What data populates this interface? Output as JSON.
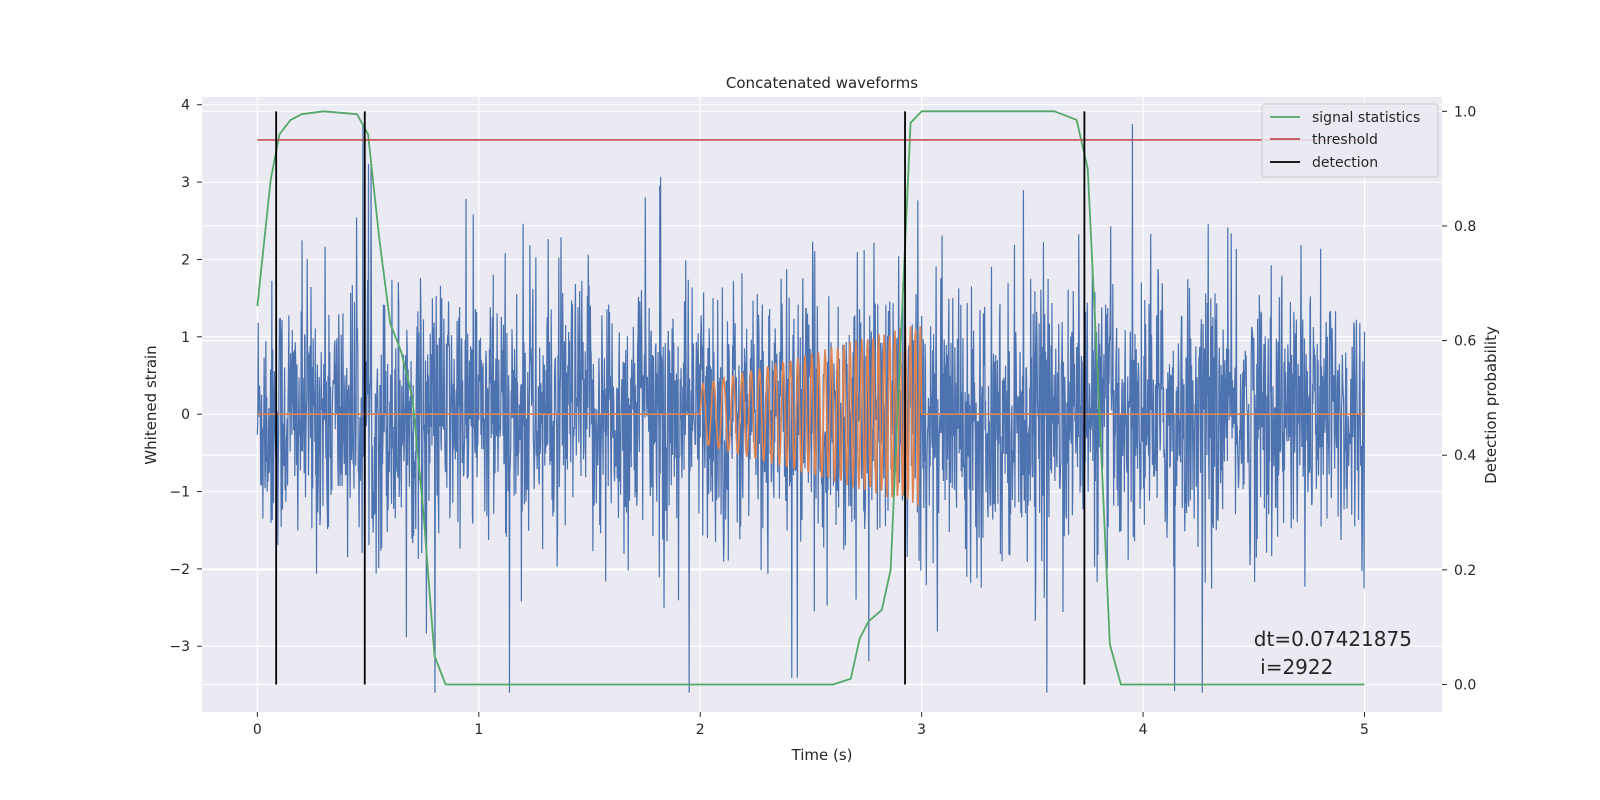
{
  "chart_data": {
    "type": "line",
    "title": "Concatenated waveforms",
    "xlabel": "Time (s)",
    "ylabel": "Whitened strain",
    "y2label": "Detection probability",
    "xlim": [
      -0.25,
      5.35
    ],
    "ylim": [
      -3.85,
      4.1
    ],
    "y2lim": [
      -0.048,
      1.025
    ],
    "xticks": [
      0,
      1,
      2,
      3,
      4,
      5
    ],
    "xtick_labels": [
      "0",
      "1",
      "2",
      "3",
      "4",
      "5"
    ],
    "yticks": [
      -3,
      -2,
      -1,
      0,
      1,
      2,
      3,
      4
    ],
    "ytick_labels": [
      "−3",
      "−2",
      "−1",
      "0",
      "1",
      "2",
      "3",
      "4"
    ],
    "y2ticks": [
      0.0,
      0.2,
      0.4,
      0.6,
      0.8,
      1.0
    ],
    "y2tick_labels": [
      "0.0",
      "0.2",
      "0.4",
      "0.6",
      "0.8",
      "1.0"
    ],
    "grid": true,
    "legend_position": "top-right",
    "series": [
      {
        "key": "strain",
        "axis": "left",
        "color": "#4c72b0",
        "description": "whitened noisy strain, 0–5 s, amplitude ~±3.5",
        "x_range": [
          0,
          5
        ],
        "envelope": [
          -3.6,
          3.75
        ]
      },
      {
        "key": "template",
        "axis": "left",
        "color": "#dd8452",
        "description": "chirp waveform",
        "x_range": [
          2.0,
          3.0
        ],
        "amplitude_start": 0.38,
        "amplitude_end": 1.2,
        "freq_start_hz": 20,
        "freq_end_hz": 45
      },
      {
        "name": "signal statistics",
        "axis": "right",
        "color": "#55a868",
        "x": [
          0.0,
          0.03,
          0.06,
          0.1,
          0.15,
          0.2,
          0.3,
          0.45,
          0.5,
          0.55,
          0.6,
          0.65,
          0.7,
          0.75,
          0.8,
          0.85,
          1.0,
          2.0,
          2.6,
          2.68,
          2.72,
          2.76,
          2.82,
          2.86,
          2.9,
          2.95,
          3.0,
          3.6,
          3.7,
          3.75,
          3.8,
          3.85,
          3.9,
          5.0
        ],
        "y": [
          0.66,
          0.77,
          0.88,
          0.96,
          0.985,
          0.995,
          1.0,
          0.995,
          0.96,
          0.78,
          0.63,
          0.58,
          0.5,
          0.3,
          0.05,
          0.0,
          0.0,
          0.0,
          0.0,
          0.01,
          0.08,
          0.11,
          0.13,
          0.2,
          0.55,
          0.98,
          1.0,
          1.0,
          0.985,
          0.9,
          0.5,
          0.07,
          0.0,
          0.0
        ]
      },
      {
        "name": "threshold",
        "axis": "right",
        "color": "#c44e52",
        "x": [
          0,
          5
        ],
        "y": [
          0.95,
          0.95
        ]
      },
      {
        "name": "detection",
        "axis": "right",
        "color": "#000000",
        "vlines": [
          0.085,
          0.485,
          2.925,
          3.735
        ],
        "ymin": 0.0,
        "ymax": 1.0
      }
    ],
    "annotations": [
      {
        "line1": "dt=0.07421875",
        "line2": " i=2922",
        "x": 4.5,
        "y": -3.0
      }
    ]
  }
}
